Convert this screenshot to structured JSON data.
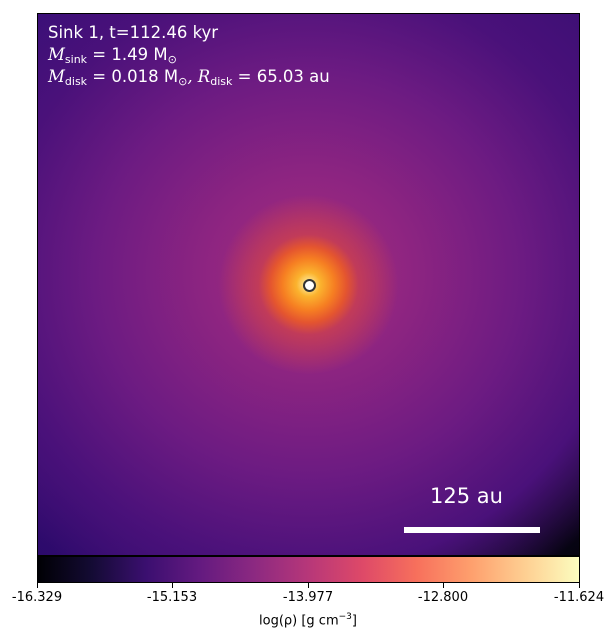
{
  "annotation": {
    "line1": "Sink 1, t=112.46 kyr",
    "msink_symbol": "M",
    "msink_sub": "sink",
    "msink_value": " = 1.49 M",
    "msink_unit_sub": "⊙",
    "mdisk_symbol": "M",
    "mdisk_sub": "disk",
    "mdisk_value": " = 0.018 M",
    "mdisk_unit_sub": "⊙",
    "rdisk_symbol": ", R",
    "rdisk_sub": "disk",
    "rdisk_value": " = 65.03 au"
  },
  "scale_bar": {
    "label": "125 au"
  },
  "colorbar": {
    "colormap": "inferno",
    "ticks": [
      "-16.329",
      "-15.153",
      "-13.977",
      "-12.800",
      "-11.624"
    ],
    "label_main": "log(ρ) [g cm",
    "label_exp": "−3",
    "label_close": "]"
  },
  "sink": {
    "marker": "circle",
    "fill": "#ffffff",
    "edge": "#333333"
  }
}
